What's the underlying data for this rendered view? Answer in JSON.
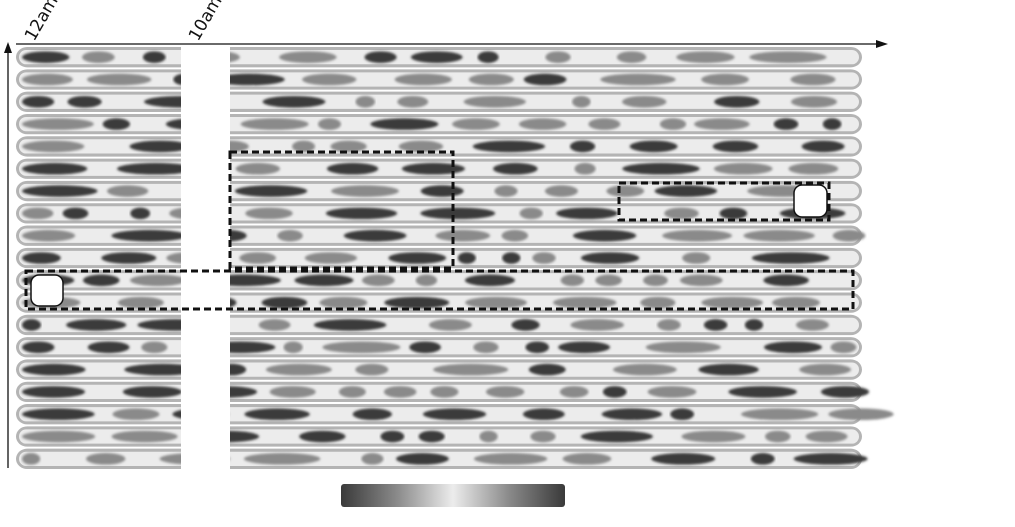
{
  "chart_data": {
    "type": "heatmap",
    "title": "",
    "xlabel": "",
    "ylabel": "",
    "x_tick_labels": [
      "12am",
      "10am"
    ],
    "rows": 19,
    "colormap": [
      "#3a3a3a",
      "#8a8a8a",
      "#ececec",
      "#8a8a8a",
      "#3a3a3a"
    ],
    "colorbar": {
      "orientation": "horizontal",
      "labels": []
    },
    "highlight_boxes": 3,
    "hidden_column_band": true,
    "grid": false
  }
}
